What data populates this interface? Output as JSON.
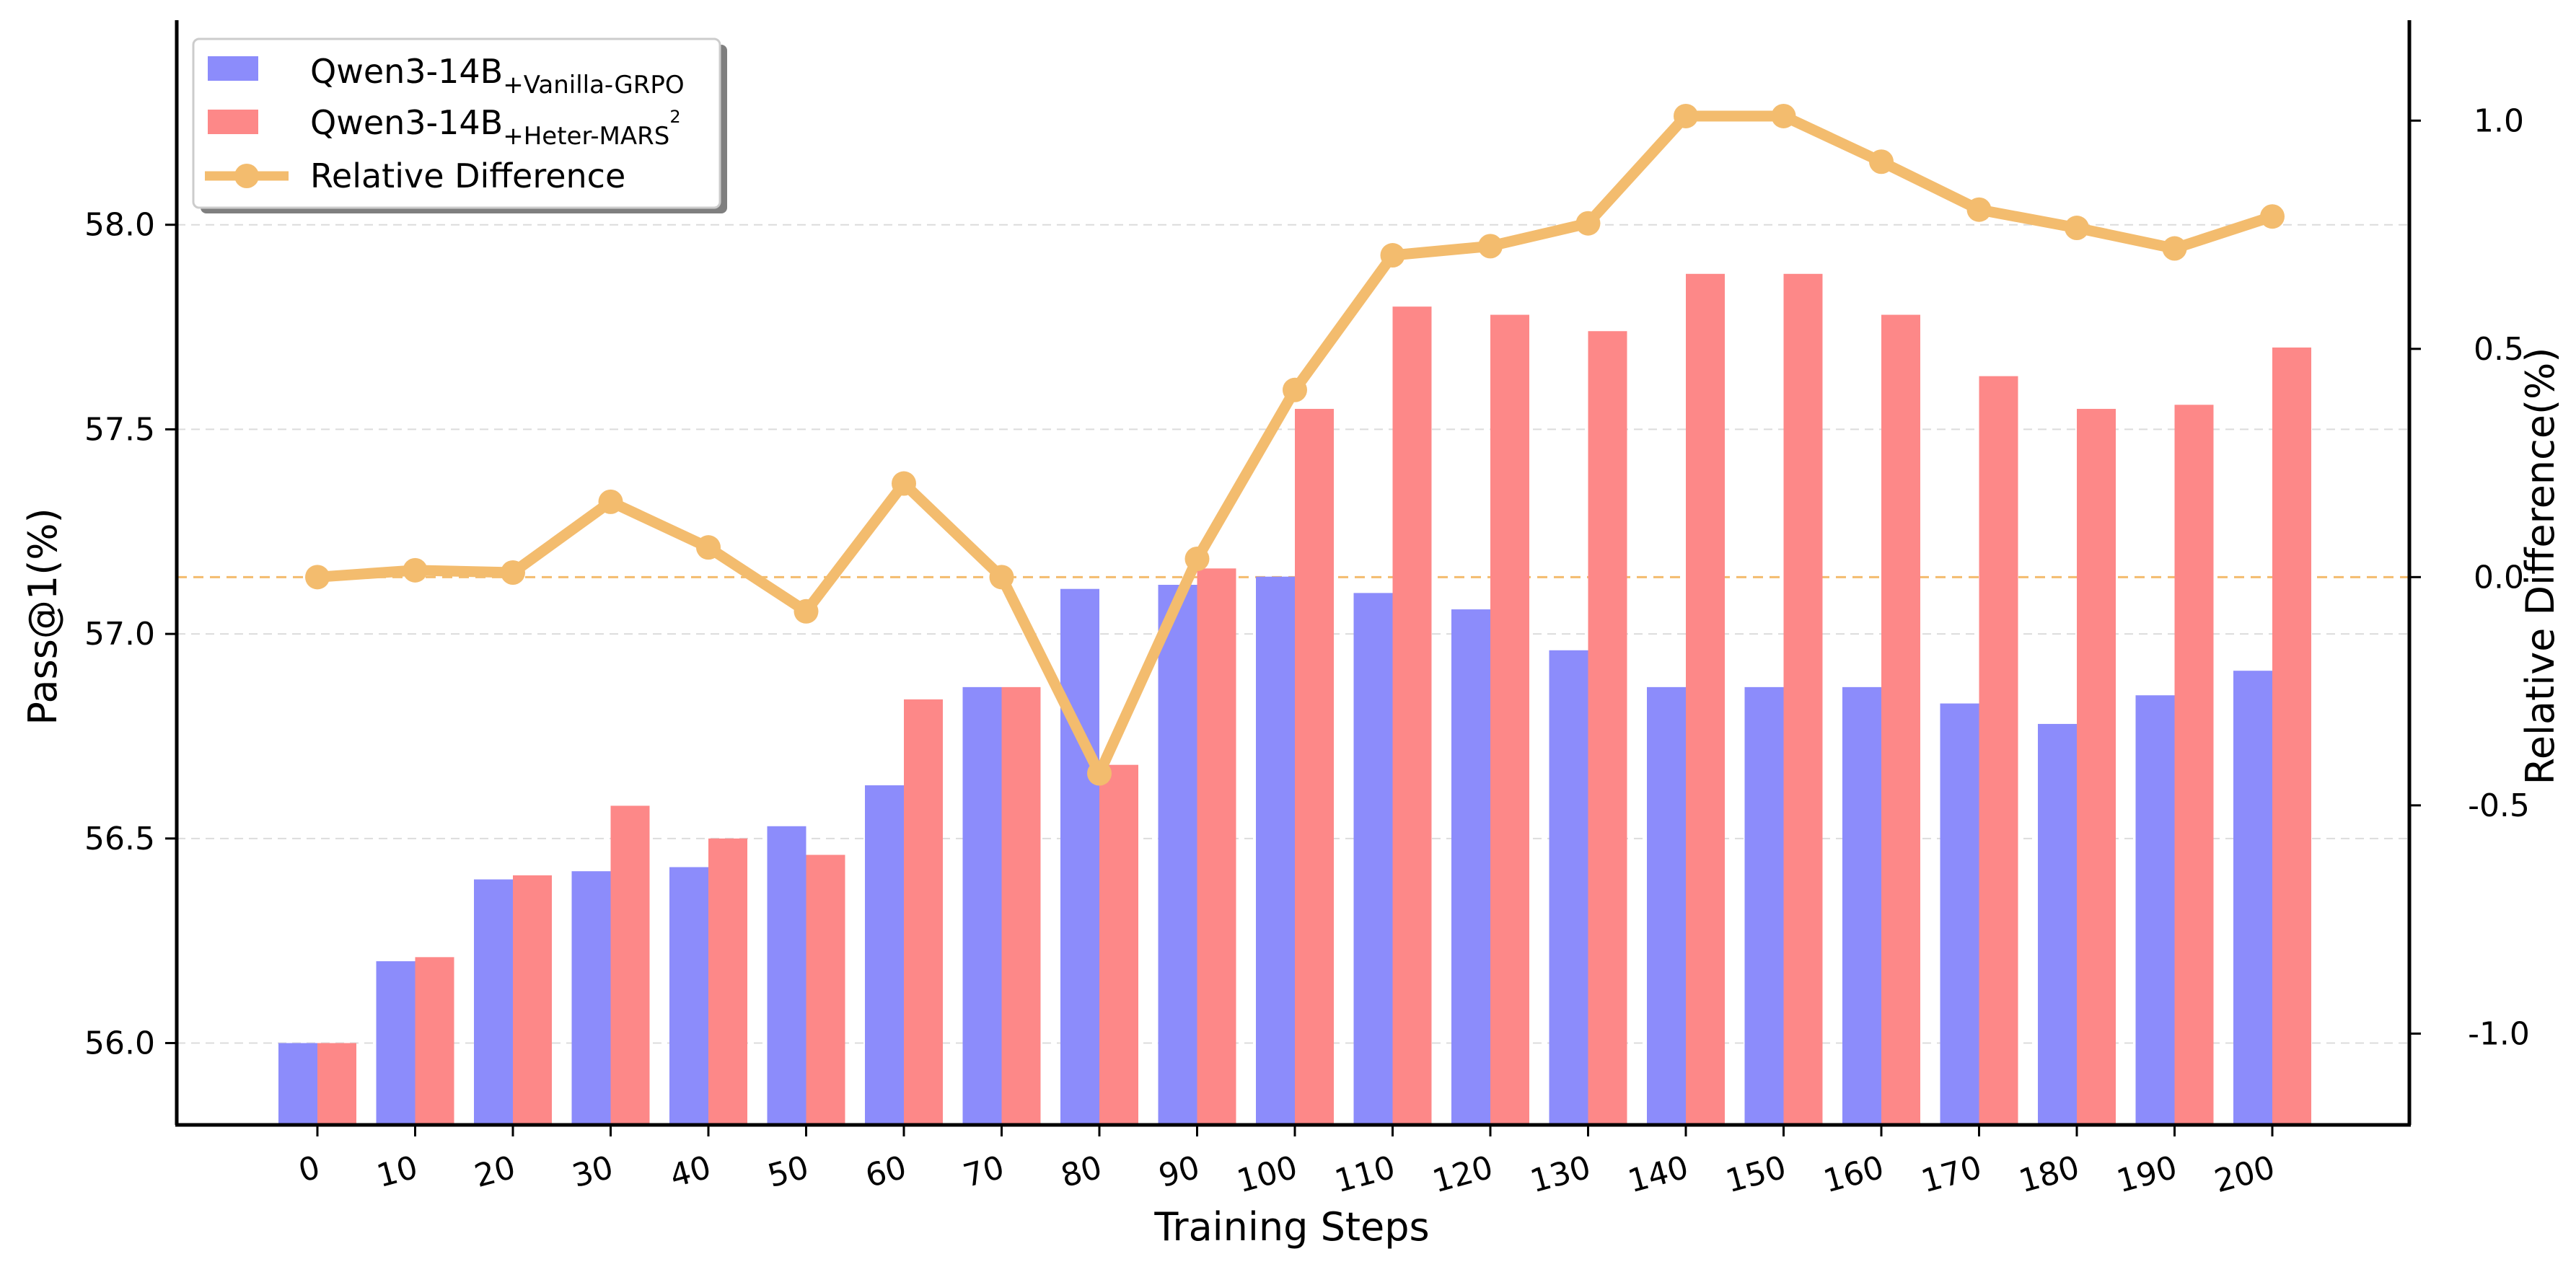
{
  "chart_data": {
    "type": "bar",
    "xlabel": "Training Steps",
    "ylabel": "Pass@1(%)",
    "y2label": "Relative Difference(%)",
    "ylim": [
      55.8,
      58.5
    ],
    "y2lim": [
      -1.2,
      1.22
    ],
    "yticks": [
      "56.0",
      "56.5",
      "57.0",
      "57.5",
      "58.0"
    ],
    "y2ticks": [
      "-1.0",
      "-0.5",
      "0.0",
      "0.5",
      "1.0"
    ],
    "categories": [
      "0",
      "10",
      "20",
      "30",
      "40",
      "50",
      "60",
      "70",
      "80",
      "90",
      "100",
      "110",
      "120",
      "130",
      "140",
      "150",
      "160",
      "170",
      "180",
      "190",
      "200"
    ],
    "grid": true,
    "legend_position": "top-left",
    "series": [
      {
        "name": "Qwen3-14B",
        "name_sub": "+Vanilla-GRPO",
        "name_sup": "",
        "kind": "bar",
        "axis": "left",
        "color": "#8c8cfb",
        "values": [
          56.0,
          56.2,
          56.4,
          56.42,
          56.43,
          56.53,
          56.63,
          56.87,
          57.11,
          57.12,
          57.14,
          57.1,
          57.06,
          56.96,
          56.87,
          56.87,
          56.87,
          56.83,
          56.78,
          56.85,
          56.91
        ]
      },
      {
        "name": "Qwen3-14B",
        "name_sub": "+Heter-MARS",
        "name_sup": "2",
        "kind": "bar",
        "axis": "left",
        "color": "#fd8888",
        "values": [
          56.0,
          56.21,
          56.41,
          56.58,
          56.5,
          56.46,
          56.84,
          56.87,
          56.68,
          57.16,
          57.55,
          57.8,
          57.78,
          57.74,
          57.88,
          57.88,
          57.78,
          57.63,
          57.55,
          57.56,
          57.7
        ]
      },
      {
        "name": "Relative Difference",
        "name_sub": "",
        "name_sup": "",
        "kind": "line",
        "axis": "right",
        "color": "#f3bc6e",
        "values": [
          0.0,
          0.015,
          0.01,
          0.165,
          0.065,
          -0.075,
          0.205,
          0.0,
          -0.43,
          0.04,
          0.41,
          0.705,
          0.725,
          0.775,
          1.01,
          1.01,
          0.91,
          0.805,
          0.765,
          0.72,
          0.79
        ]
      }
    ],
    "reference_line": {
      "axis": "right",
      "value": 0.0,
      "color": "#f3bc6e"
    }
  }
}
